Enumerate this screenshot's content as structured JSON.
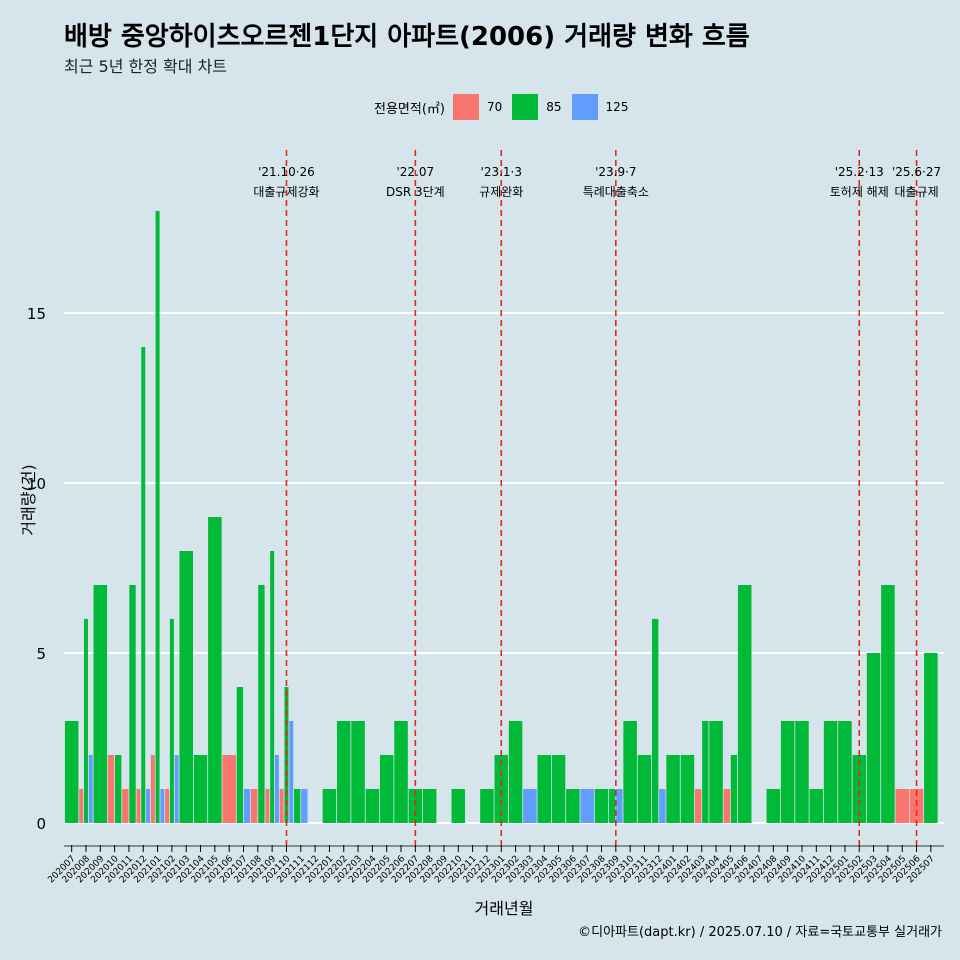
{
  "header": {
    "title": "배방 중앙하이츠오르젠1단지 아파트(2006) 거래량 변화 흐름",
    "subtitle": "최근 5년 한정 확대 차트"
  },
  "legend": {
    "title": "전용면적(㎡)",
    "items": [
      {
        "label": "70",
        "color": "#f8766d"
      },
      {
        "label": "85",
        "color": "#00ba38"
      },
      {
        "label": "125",
        "color": "#619cff"
      }
    ]
  },
  "caption": "©디아파트(dapt.kr) / 2025.07.10 / 자료=국토교통부 실거래가",
  "chart_data": {
    "type": "bar",
    "title": "배방 중앙하이츠오르젠1단지 아파트(2006) 거래량 변화 흐름",
    "subtitle": "최근 5년 한정 확대 차트",
    "xlabel": "거래년월",
    "ylabel": "거래량(건)",
    "ylim": [
      0,
      18.5
    ],
    "yticks": [
      0,
      5,
      10,
      15
    ],
    "grid": true,
    "legend_position": "top",
    "categories": [
      "202007",
      "202008",
      "202009",
      "202010",
      "202011",
      "202012",
      "202101",
      "202102",
      "202103",
      "202104",
      "202105",
      "202106",
      "202107",
      "202108",
      "202109",
      "202110",
      "202111",
      "202112",
      "202201",
      "202202",
      "202203",
      "202204",
      "202205",
      "202206",
      "202207",
      "202208",
      "202209",
      "202210",
      "202211",
      "202212",
      "202301",
      "202302",
      "202303",
      "202304",
      "202305",
      "202306",
      "202307",
      "202308",
      "202309",
      "202310",
      "202311",
      "202312",
      "202401",
      "202402",
      "202403",
      "202404",
      "202405",
      "202406",
      "202407",
      "202408",
      "202409",
      "202410",
      "202411",
      "202412",
      "202501",
      "202502",
      "202503",
      "202504",
      "202505",
      "202506",
      "202507"
    ],
    "series": [
      {
        "name": "70",
        "color": "#f8766d",
        "values": [
          0,
          1,
          0,
          2,
          1,
          1,
          2,
          1,
          0,
          0,
          0,
          2,
          0,
          1,
          1,
          1,
          0,
          0,
          0,
          0,
          0,
          0,
          0,
          0,
          0,
          0,
          0,
          0,
          0,
          0,
          0,
          0,
          0,
          0,
          0,
          0,
          0,
          0,
          0,
          0,
          0,
          0,
          0,
          0,
          1,
          0,
          1,
          0,
          0,
          0,
          0,
          0,
          0,
          0,
          0,
          0,
          0,
          0,
          1,
          1,
          0
        ]
      },
      {
        "name": "85",
        "color": "#00ba38",
        "values": [
          3,
          6,
          7,
          2,
          7,
          14,
          18,
          6,
          8,
          2,
          9,
          0,
          4,
          7,
          8,
          4,
          1,
          0,
          1,
          3,
          3,
          1,
          2,
          3,
          1,
          1,
          0,
          1,
          0,
          1,
          2,
          3,
          0,
          2,
          2,
          1,
          0,
          1,
          1,
          3,
          2,
          6,
          2,
          2,
          3,
          3,
          2,
          7,
          0,
          1,
          3,
          3,
          1,
          3,
          3,
          2,
          5,
          7,
          0,
          0,
          5
        ]
      },
      {
        "name": "125",
        "color": "#619cff",
        "values": [
          0,
          2,
          0,
          0,
          0,
          1,
          1,
          2,
          0,
          0,
          0,
          0,
          1,
          0,
          2,
          3,
          1,
          0,
          0,
          0,
          0,
          0,
          0,
          0,
          0,
          0,
          0,
          0,
          0,
          0,
          0,
          0,
          1,
          0,
          0,
          0,
          1,
          0,
          1,
          0,
          0,
          1,
          0,
          0,
          0,
          0,
          0,
          0,
          0,
          0,
          0,
          0,
          0,
          0,
          0,
          0,
          0,
          0,
          0,
          0,
          0
        ]
      }
    ],
    "annotations": [
      {
        "date": "'21.10·26",
        "label": "대출규제강화",
        "category": "202110"
      },
      {
        "date": "'22.07",
        "label": "DSR 3단계",
        "category": "202207"
      },
      {
        "date": "'23.1·3",
        "label": "규제완화",
        "category": "202301"
      },
      {
        "date": "'23.9·7",
        "label": "특례대출축소",
        "category": "202309"
      },
      {
        "date": "'25.2·13",
        "label": "토허제 해제",
        "category": "202502"
      },
      {
        "date": "'25.6·27",
        "label": "대출규제",
        "category": "202506"
      }
    ]
  }
}
